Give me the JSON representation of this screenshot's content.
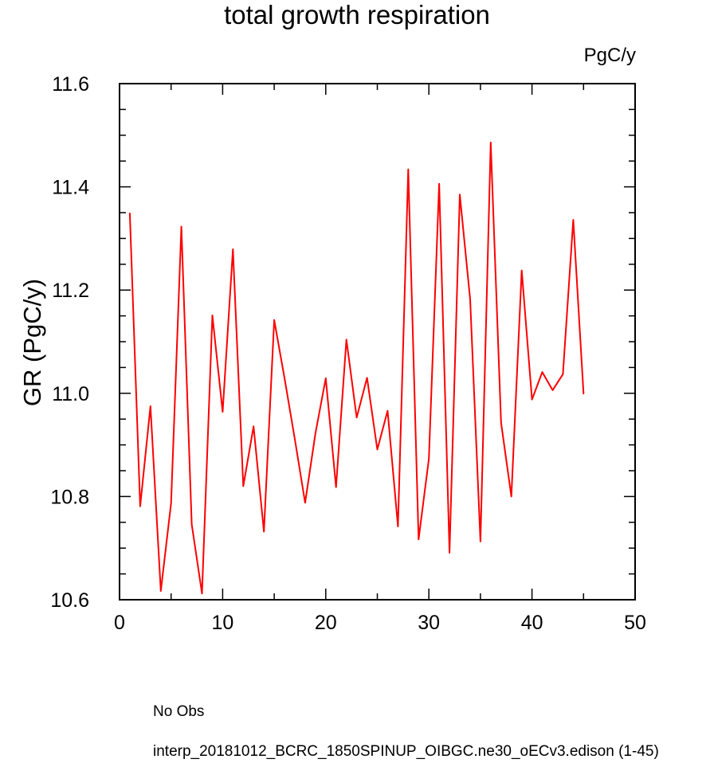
{
  "chart_data": {
    "type": "line",
    "title": "total growth respiration",
    "units_label": "PgC/y",
    "ylabel": "GR  (PgC/y)",
    "xlabel": "",
    "xlim": [
      0,
      50
    ],
    "ylim": [
      10.6,
      11.6
    ],
    "x_ticks": [
      0,
      10,
      20,
      30,
      40,
      50
    ],
    "y_ticks": [
      10.6,
      10.8,
      11.0,
      11.2,
      11.4,
      11.6
    ],
    "y_tick_labels": [
      "10.6",
      "10.8",
      "11.0",
      "11.2",
      "11.4",
      "11.6"
    ],
    "grid": false,
    "legend_position": "bottom-left",
    "series": [
      {
        "name": "interp_20181012_BCRC_1850SPINUP_OIBGC.ne30_oECv3.edison (1-45)",
        "color": "#ff0000",
        "style": "solid",
        "x": [
          1,
          2,
          3,
          4,
          5,
          6,
          7,
          8,
          9,
          10,
          11,
          12,
          13,
          14,
          15,
          16,
          17,
          18,
          19,
          20,
          21,
          22,
          23,
          24,
          25,
          26,
          27,
          28,
          29,
          30,
          31,
          32,
          33,
          34,
          35,
          36,
          37,
          38,
          39,
          40,
          41,
          42,
          43,
          44,
          45
        ],
        "y": [
          11.349,
          10.781,
          10.975,
          10.617,
          10.787,
          11.323,
          10.746,
          10.612,
          11.151,
          10.964,
          11.279,
          10.82,
          10.936,
          10.732,
          11.142,
          11.03,
          10.911,
          10.788,
          10.923,
          11.029,
          10.818,
          11.104,
          10.953,
          11.03,
          10.891,
          10.966,
          10.742,
          11.434,
          10.717,
          10.873,
          11.406,
          10.691,
          11.385,
          11.182,
          10.713,
          11.486,
          10.943,
          10.8,
          11.238,
          10.988,
          11.041,
          11.006,
          11.037,
          11.336,
          10.999
        ]
      }
    ],
    "legend": [
      {
        "label": "No Obs",
        "color": "#3333cc",
        "style": "dashed"
      },
      {
        "label": "interp_20181012_BCRC_1850SPINUP_OIBGC.ne30_oECv3.edison (1-45)",
        "color": "#ff0000",
        "style": "solid"
      }
    ]
  }
}
